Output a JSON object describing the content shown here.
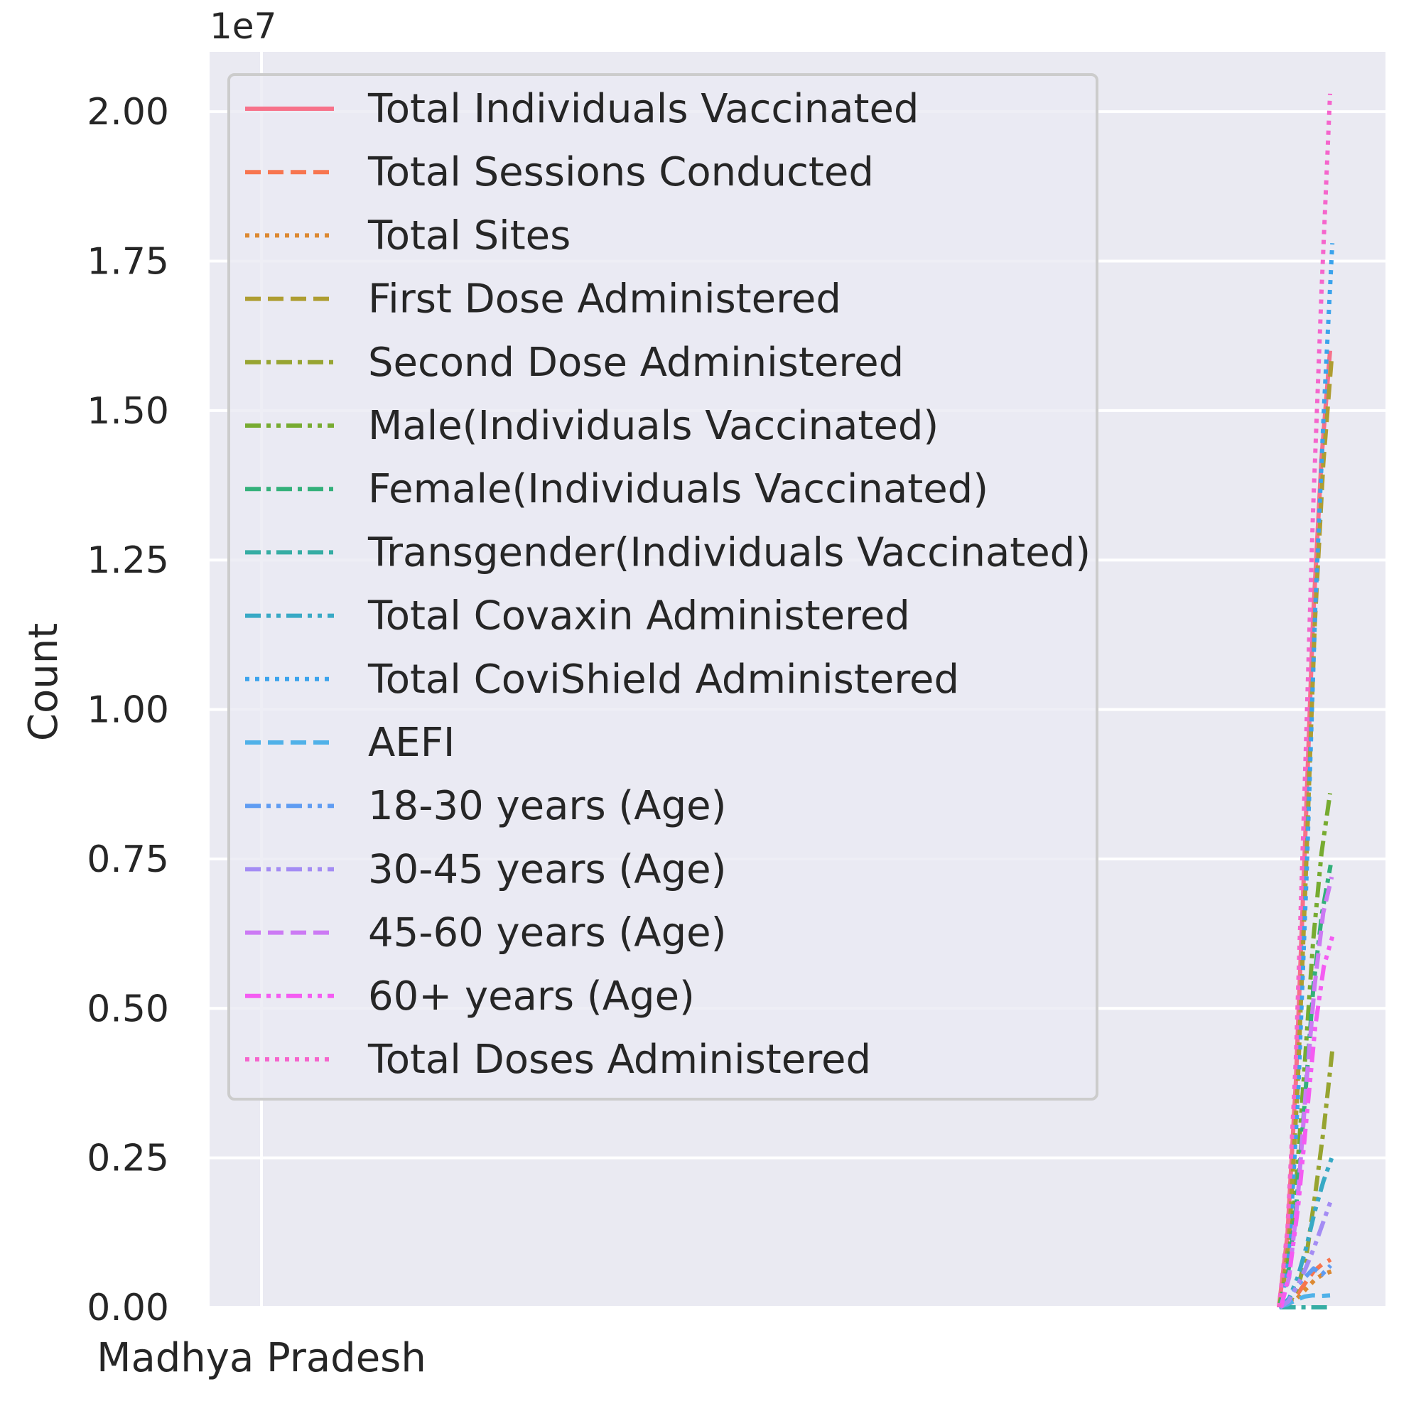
{
  "chart_data": {
    "type": "line",
    "title": "",
    "xlabel": "",
    "ylabel": "Count",
    "y_offset_text": "1e7",
    "ylim": [
      0,
      21000000
    ],
    "y_ticks": [
      {
        "value": 0,
        "label": "0.00"
      },
      {
        "value": 2500000,
        "label": "0.25"
      },
      {
        "value": 5000000,
        "label": "0.50"
      },
      {
        "value": 7500000,
        "label": "0.75"
      },
      {
        "value": 10000000,
        "label": "1.00"
      },
      {
        "value": 12500000,
        "label": "1.25"
      },
      {
        "value": 15000000,
        "label": "1.50"
      },
      {
        "value": 17500000,
        "label": "1.75"
      },
      {
        "value": 20000000,
        "label": "2.00"
      }
    ],
    "x_ticks": [
      {
        "label": "Madhya Pradesh"
      }
    ],
    "grid": true,
    "legend_position": "upper-left",
    "series": [
      {
        "name": "Total Individuals Vaccinated",
        "color": "#f77189",
        "dash": "solid",
        "values": [
          0,
          1200000,
          3800000,
          7500000,
          11500000,
          14200000,
          16000000
        ]
      },
      {
        "name": "Total Sessions Conducted",
        "color": "#f7754f",
        "dash": "dashed",
        "values": [
          0,
          60000,
          200000,
          400000,
          600000,
          720000,
          800000
        ]
      },
      {
        "name": "Total Sites",
        "color": "#dc8932",
        "dash": "dotted",
        "values": [
          0,
          50000,
          150000,
          300000,
          450000,
          550000,
          600000
        ]
      },
      {
        "name": "First Dose Administered",
        "color": "#ae9d31",
        "dash": "dashed",
        "values": [
          0,
          1150000,
          3700000,
          7400000,
          11400000,
          14100000,
          15900000
        ]
      },
      {
        "name": "Second Dose Administered",
        "color": "#97a431",
        "dash": "dashdot",
        "values": [
          0,
          80000,
          350000,
          900000,
          1900000,
          3000000,
          4300000
        ]
      },
      {
        "name": "Male(Individuals Vaccinated)",
        "color": "#77ab31",
        "dash": "dashdotdot",
        "values": [
          0,
          650000,
          2000000,
          4000000,
          6100000,
          7600000,
          8600000
        ]
      },
      {
        "name": "Female(Individuals Vaccinated)",
        "color": "#33b07a",
        "dash": "dashdot",
        "values": [
          0,
          550000,
          1750000,
          3500000,
          5400000,
          6600000,
          7400000
        ]
      },
      {
        "name": "Transgender(Individuals Vaccinated)",
        "color": "#36ada4",
        "dash": "dashdot",
        "values": [
          0,
          50,
          150,
          300,
          450,
          560,
          630
        ]
      },
      {
        "name": "Total Covaxin Administered",
        "color": "#38a9c5",
        "dash": "dashdotdot",
        "values": [
          0,
          150000,
          500000,
          1000000,
          1600000,
          2100000,
          2500000
        ]
      },
      {
        "name": "Total CoviShield Administered",
        "color": "#3ba3ec",
        "dash": "dotted",
        "values": [
          0,
          1100000,
          3600000,
          7300000,
          11700000,
          15000000,
          17800000
        ]
      },
      {
        "name": "AEFI",
        "color": "#50b1e8",
        "dash": "dashed",
        "values": [
          0,
          50000,
          120000,
          180000,
          200000,
          190000,
          200000
        ]
      },
      {
        "name": "18-30 years (Age)",
        "color": "#5f9cf2",
        "dash": "dashdotted",
        "values": [
          0,
          100000,
          350000,
          500000,
          650000,
          550000,
          700000
        ]
      },
      {
        "name": "30-45 years (Age)",
        "color": "#a48cf4",
        "dash": "dashdotdot",
        "values": [
          0,
          100000,
          350000,
          650000,
          1000000,
          1400000,
          1800000
        ]
      },
      {
        "name": "45-60 years (Age)",
        "color": "#cc7af4",
        "dash": "dashed",
        "values": [
          0,
          500000,
          1800000,
          3700000,
          5400000,
          6600000,
          7200000
        ]
      },
      {
        "name": "60+ years (Age)",
        "color": "#f45cf2",
        "dash": "dashdotdot",
        "values": [
          0,
          600000,
          1700000,
          3200000,
          4700000,
          5700000,
          6200000
        ]
      },
      {
        "name": "Total Doses Administered",
        "color": "#f565cc",
        "dash": "dotted",
        "values": [
          0,
          1300000,
          4200000,
          8600000,
          13300000,
          17000000,
          20300000
        ]
      }
    ]
  }
}
